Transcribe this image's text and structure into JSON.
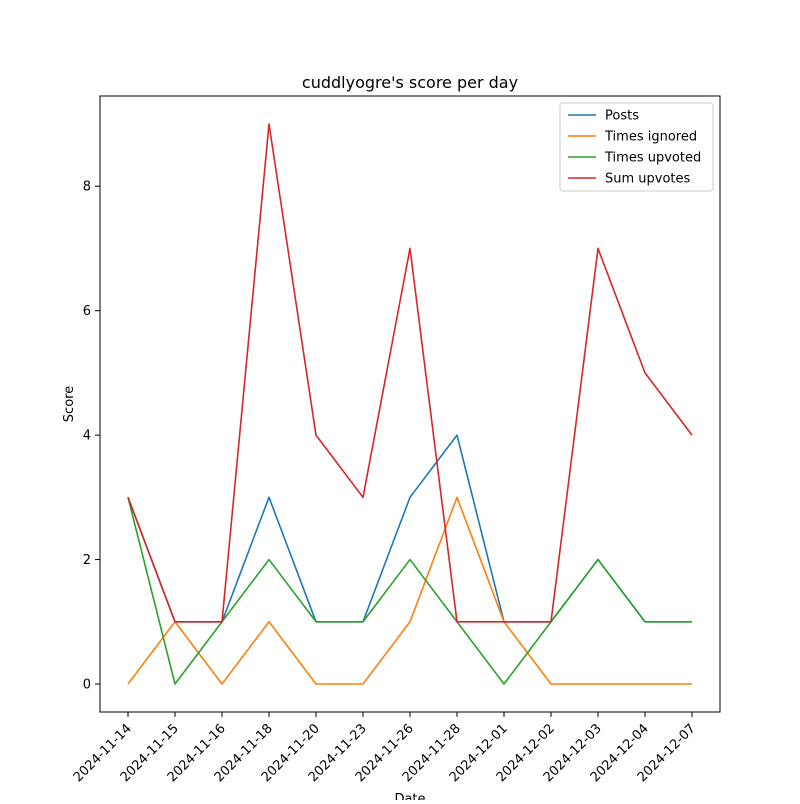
{
  "chart_data": {
    "type": "line",
    "title": "cuddlyogre's score per day",
    "xlabel": "Date",
    "ylabel": "Score",
    "categories": [
      "2024-11-14",
      "2024-11-15",
      "2024-11-16",
      "2024-11-18",
      "2024-11-20",
      "2024-11-23",
      "2024-11-26",
      "2024-11-28",
      "2024-12-01",
      "2024-12-02",
      "2024-12-03",
      "2024-12-04",
      "2024-12-07"
    ],
    "yticks": [
      0,
      2,
      4,
      6,
      8
    ],
    "ylim": [
      -0.45,
      9.45
    ],
    "grid": false,
    "legend": "top-right",
    "series": [
      {
        "name": "Posts",
        "color": "#1f77b4",
        "values": [
          3,
          1,
          1,
          3,
          1,
          1,
          3,
          4,
          1,
          1,
          2,
          1,
          1
        ]
      },
      {
        "name": "Times ignored",
        "color": "#ff7f0e",
        "values": [
          0,
          1,
          0,
          1,
          0,
          0,
          1,
          3,
          1,
          0,
          0,
          0,
          0
        ]
      },
      {
        "name": "Times upvoted",
        "color": "#2ca02c",
        "values": [
          3,
          0,
          1,
          2,
          1,
          1,
          2,
          1,
          0,
          1,
          2,
          1,
          1
        ]
      },
      {
        "name": "Sum upvotes",
        "color": "#d62728",
        "values": [
          3,
          1,
          1,
          9,
          4,
          3,
          7,
          1,
          1,
          1,
          7,
          5,
          4
        ]
      }
    ]
  }
}
